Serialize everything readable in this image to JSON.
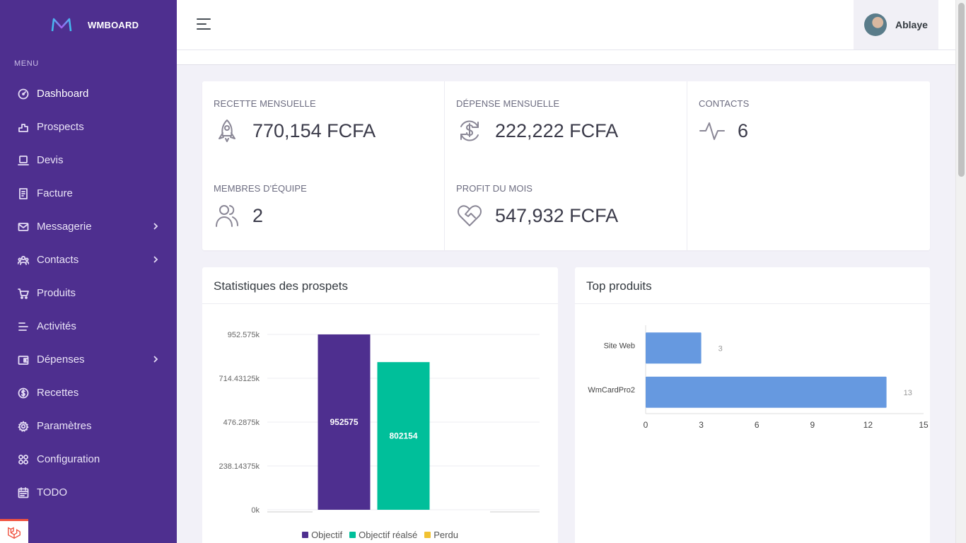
{
  "brand": {
    "name": "WMBOARD"
  },
  "sidebar": {
    "menu_title": "MENU",
    "items": [
      {
        "label": "Dashboard",
        "icon": "gauge-icon",
        "active": true
      },
      {
        "label": "Prospects",
        "icon": "chart-box-icon"
      },
      {
        "label": "Devis",
        "icon": "laptop-icon"
      },
      {
        "label": "Facture",
        "icon": "receipt-icon"
      },
      {
        "label": "Messagerie",
        "icon": "mail-icon",
        "submenu": true
      },
      {
        "label": "Contacts",
        "icon": "users-icon",
        "submenu": true
      },
      {
        "label": "Produits",
        "icon": "cart-icon"
      },
      {
        "label": "Activités",
        "icon": "lines-icon"
      },
      {
        "label": "Dépenses",
        "icon": "wallet-icon",
        "submenu": true
      },
      {
        "label": "Recettes",
        "icon": "dollar-circle-icon"
      },
      {
        "label": "Paramètres",
        "icon": "gear-icon"
      },
      {
        "label": "Configuration",
        "icon": "grid-icon"
      },
      {
        "label": "TODO",
        "icon": "calendar-icon"
      }
    ]
  },
  "header": {
    "user_name": "Ablaye"
  },
  "stats": {
    "recette": {
      "label": "RECETTE MENSUELLE",
      "value": "770,154 FCFA"
    },
    "depense": {
      "label": "DÉPENSE MENSUELLE",
      "value": "222,222 FCFA"
    },
    "contacts": {
      "label": "CONTACTS",
      "value": "6"
    },
    "membres": {
      "label": "MEMBRES D'ÉQUIPE",
      "value": "2"
    },
    "profit": {
      "label": "PROFIT DU MOIS",
      "value": "547,932 FCFA"
    }
  },
  "panels": {
    "prospects_title": "Statistiques des prospets",
    "products_title": "Top produits"
  },
  "chart_data": [
    {
      "type": "bar",
      "title": "Statistiques des prospets",
      "y_ticks": [
        "0k",
        "238.14375k",
        "476.2875k",
        "714.43125k",
        "952.575k"
      ],
      "ylim": [
        0,
        952575
      ],
      "series": [
        {
          "name": "Objectif",
          "value": 952575,
          "label": "952575",
          "color": "#4e2f8f"
        },
        {
          "name": "Objectif réalsé",
          "value": 802154,
          "label": "802154",
          "color": "#00bf9a"
        },
        {
          "name": "Perdu",
          "value": 0,
          "label": "",
          "color": "#f1c232"
        }
      ]
    },
    {
      "type": "bar",
      "orientation": "horizontal",
      "title": "Top produits",
      "categories": [
        "Site Web",
        "WmCardPro2"
      ],
      "values": [
        3,
        13
      ],
      "x_ticks": [
        "0",
        "3",
        "6",
        "9",
        "12",
        "15"
      ],
      "xlim": [
        0,
        15
      ],
      "color": "#6699e0"
    }
  ]
}
